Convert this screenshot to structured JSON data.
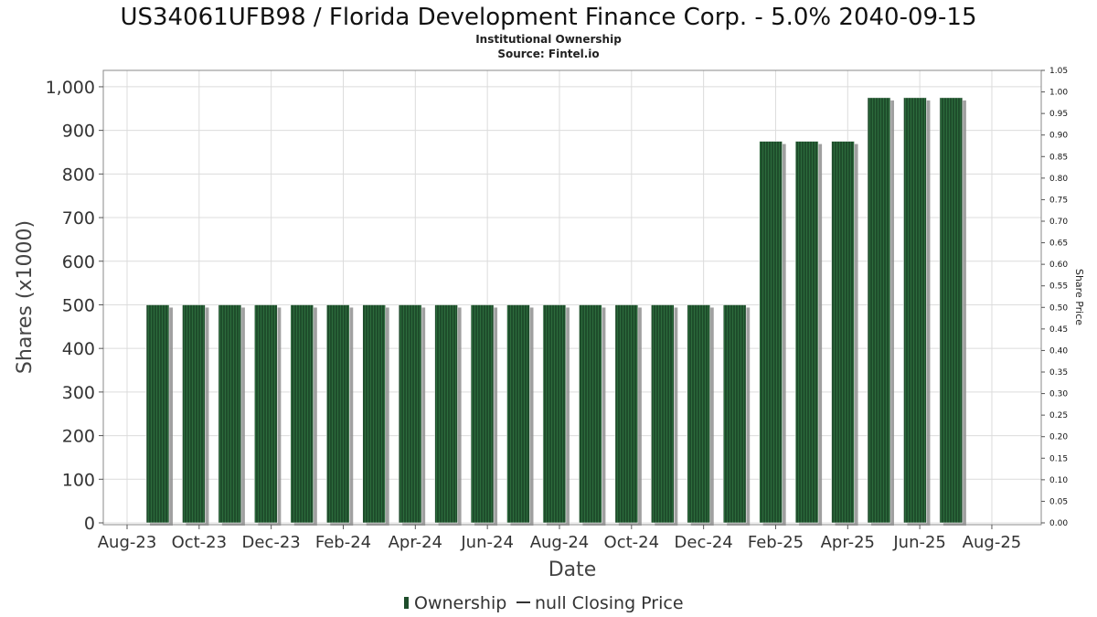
{
  "chart_data": {
    "type": "bar",
    "title": "US34061UFB98 / Florida Development Finance Corp. - 5.0% 2040-09-15",
    "subtitle_lines": [
      "Institutional Ownership",
      "Source: Fintel.io"
    ],
    "xlabel": "Date",
    "ylabel": "Shares (x1000)",
    "y2label": "Share Price",
    "x_tick_labels": [
      "Aug-23",
      "Oct-23",
      "Dec-23",
      "Feb-24",
      "Apr-24",
      "Jun-24",
      "Aug-24",
      "Oct-24",
      "Dec-24",
      "Feb-25",
      "Apr-25",
      "Jun-25",
      "Aug-25"
    ],
    "ylim": [
      0,
      1025
    ],
    "y_ticks": [
      0,
      100,
      200,
      300,
      400,
      500,
      600,
      700,
      800,
      900,
      1000
    ],
    "y_tick_labels": [
      "0",
      "100",
      "200",
      "300",
      "400",
      "500",
      "600",
      "700",
      "800",
      "900",
      "1,000"
    ],
    "y2lim": [
      0,
      1.05
    ],
    "y2_tick_labels": [
      "0.00",
      "0.05",
      "0.10",
      "0.15",
      "0.20",
      "0.25",
      "0.30",
      "0.35",
      "0.40",
      "0.45",
      "0.50",
      "0.55",
      "0.60",
      "0.65",
      "0.70",
      "0.75",
      "0.80",
      "0.85",
      "0.90",
      "0.95",
      "1.00",
      "1.05"
    ],
    "grid": true,
    "legend_position": "bottom-center",
    "legend": [
      {
        "label": "Ownership",
        "marker": "bar"
      },
      {
        "label": "null Closing Price",
        "marker": "line"
      }
    ],
    "series": [
      {
        "name": "Ownership",
        "color": "#1e4d2b",
        "values": [
          500,
          500,
          500,
          500,
          500,
          500,
          500,
          500,
          500,
          500,
          500,
          500,
          500,
          500,
          500,
          500,
          500,
          875,
          875,
          875,
          975,
          975,
          975
        ]
      }
    ]
  }
}
